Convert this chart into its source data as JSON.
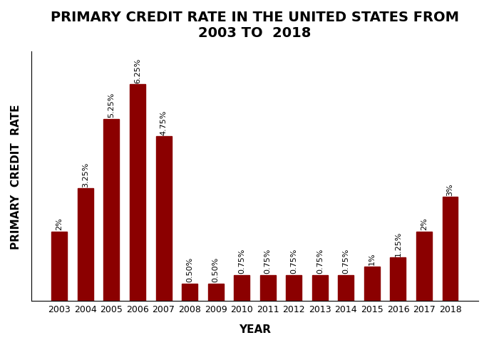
{
  "years": [
    "2003",
    "2004",
    "2005",
    "2006",
    "2007",
    "2008",
    "2009",
    "2010",
    "2011",
    "2012",
    "2013",
    "2014",
    "2015",
    "2016",
    "2017",
    "2018"
  ],
  "values": [
    2.0,
    3.25,
    5.25,
    6.25,
    4.75,
    0.5,
    0.5,
    0.75,
    0.75,
    0.75,
    0.75,
    0.75,
    1.0,
    1.25,
    2.0,
    3.0
  ],
  "labels": [
    "2%",
    "3.25%",
    "5.25%",
    "6.25%",
    "4.75%",
    "0.50%",
    "0.50%",
    "0.75%",
    "0.75%",
    "0.75%",
    "0.75%",
    "0.75%",
    "1%",
    "1.25%",
    "2%",
    "3%"
  ],
  "bar_color": "#8B0000",
  "title": "PRIMARY CREDIT RATE IN THE UNITED STATES FROM\n2003 TO  2018",
  "xlabel": "YEAR",
  "ylabel": "PRIMARY  CREDIT  RATE",
  "title_fontsize": 14,
  "axis_label_fontsize": 11,
  "tick_fontsize": 9,
  "annotation_fontsize": 8,
  "background_color": "#ffffff",
  "ylim": [
    0,
    7.2
  ]
}
